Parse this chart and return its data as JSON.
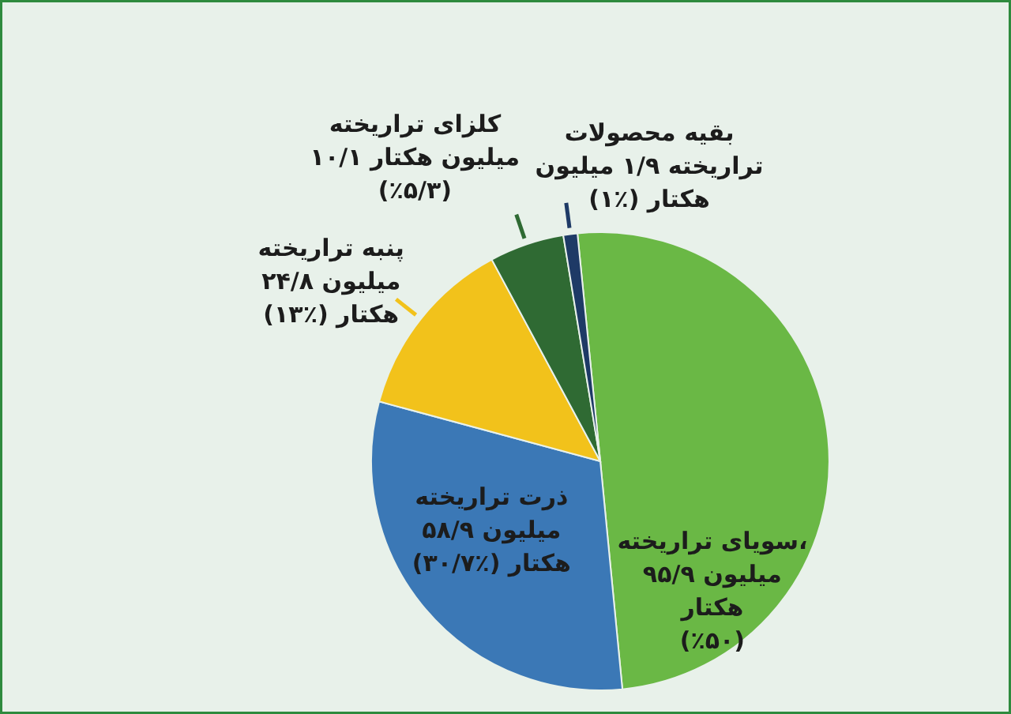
{
  "chart_data": {
    "type": "pie",
    "categories": [
      "سویای تراریخته،\n۹۵/۹ میلیون\nهکتار\n(٪۵۰)",
      "ذرت تراریخته\n۵۸/۹ میلیون\nهکتار (٪۳۰/۷)",
      "پنبه تراریخته\n۲۴/۸ میلیون\nهکتار (٪۱۳)",
      "کلزای تراریخته\n۱۰/۱ میلیون هکتار\n(٪۵/۳)",
      "بقیه محصولات\nتراریخته ۱/۹ میلیون\nهکتار (٪۱)"
    ],
    "values": [
      95.9,
      58.9,
      24.8,
      10.1,
      1.9
    ],
    "colors": [
      "#6ab845",
      "#3b78b6",
      "#f2c21b",
      "#2f6a33",
      "#1e3a66"
    ]
  }
}
